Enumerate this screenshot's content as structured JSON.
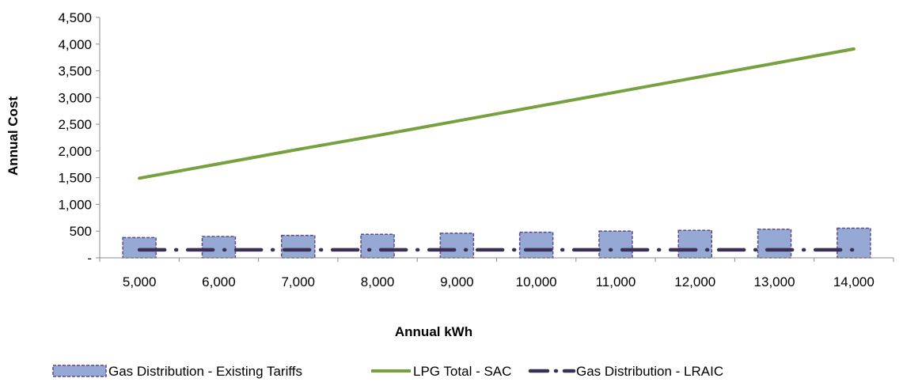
{
  "chart_data": {
    "type": "bar",
    "title": "",
    "xlabel": "Annual kWh",
    "ylabel": "Annual Cost",
    "categories": [
      "5,000",
      "6,000",
      "7,000",
      "8,000",
      "9,000",
      "10,000",
      "11,000",
      "12,000",
      "13,000",
      "14,000"
    ],
    "y_tick_labels": [
      "-",
      "500",
      "1,000",
      "1,500",
      "2,000",
      "2,500",
      "3,000",
      "3,500",
      "4,000",
      "4,500"
    ],
    "ylim": [
      0,
      4500
    ],
    "grid": false,
    "legend_position": "bottom",
    "series": [
      {
        "name": "Gas Distribution - Existing Tariffs",
        "type": "bar",
        "color": "#95a9d4",
        "border_color": "#5a4a8a",
        "values": [
          380,
          400,
          420,
          440,
          460,
          480,
          500,
          515,
          535,
          555
        ]
      },
      {
        "name": "LPG Total - SAC",
        "type": "line",
        "color": "#77a13f",
        "values": [
          1490,
          1760,
          2030,
          2290,
          2560,
          2830,
          3100,
          3370,
          3640,
          3910
        ]
      },
      {
        "name": "Gas Distribution - LRAIC",
        "type": "line",
        "style": "dash-dot",
        "color": "#3a2f55",
        "values": [
          150,
          150,
          150,
          150,
          150,
          150,
          150,
          150,
          150,
          150
        ]
      }
    ]
  }
}
